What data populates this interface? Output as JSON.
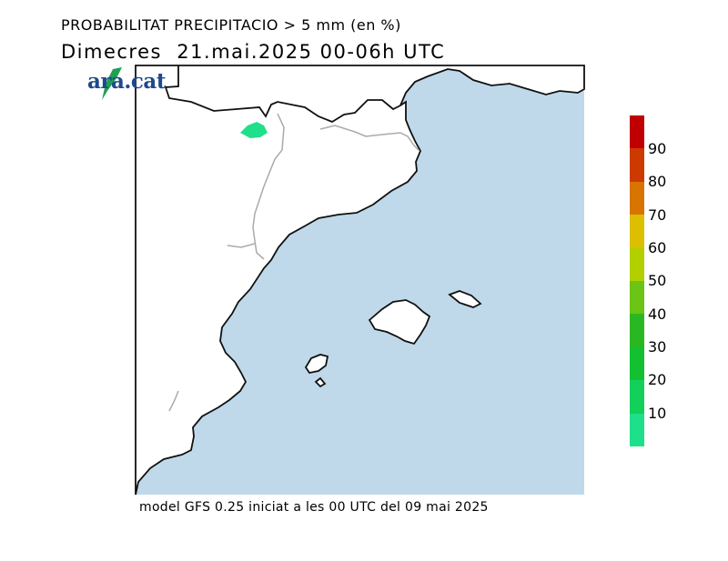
{
  "title": {
    "line1": "PROBABILITAT PRECIPITACIO > 5 mm (en %)",
    "line2": "Dimecres  21.mai.2025 00-06h UTC"
  },
  "footer": "model GFS 0.25 iniciat a les 00 UTC del 09 mai 2025",
  "logo": {
    "text": "ara.cat",
    "accent_color": "#1fa052"
  },
  "map": {
    "sea_color": "#bfd9ea",
    "land_color": "#ffffff",
    "coast_color": "#111111",
    "border_color": "#aaaaaa",
    "precip_areas": [
      {
        "probability_class": "10-20",
        "color": "#1ee08a"
      }
    ]
  },
  "legend": {
    "labels": [
      "10",
      "20",
      "30",
      "40",
      "50",
      "60",
      "70",
      "80",
      "90"
    ],
    "colors": [
      "#1ee08a",
      "#12d05a",
      "#12c032",
      "#2ab822",
      "#6cc414",
      "#b2d000",
      "#dcbf00",
      "#d87400",
      "#cc3a00",
      "#c00000"
    ]
  }
}
